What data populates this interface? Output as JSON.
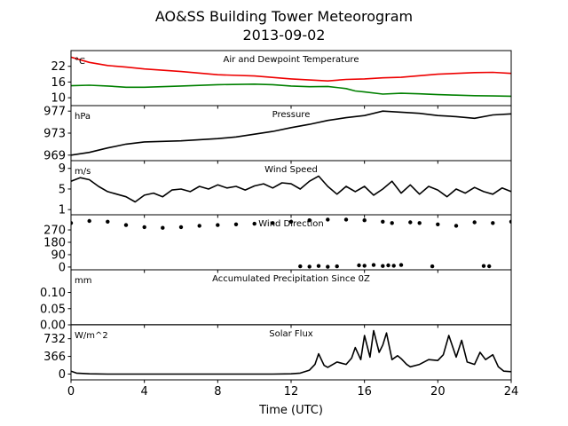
{
  "figure": {
    "title": "AO&SS Building Tower Meteorogram",
    "subtitle": "2013-09-02",
    "xlabel": "Time (UTC)"
  },
  "chart_data": [
    {
      "type": "line",
      "title": "Air and Dewpoint Temperature",
      "unit": "°C",
      "xlim": [
        0,
        24
      ],
      "ylim": [
        7,
        28
      ],
      "yticks": [
        10,
        16,
        22
      ],
      "xticks": [
        0,
        4,
        8,
        12,
        16,
        20,
        24
      ],
      "colors": {
        "air": "#ee0000",
        "dew": "#008000"
      },
      "series": [
        {
          "key": "air",
          "x": [
            0,
            0.5,
            1,
            2,
            3,
            4,
            6,
            8,
            10,
            12,
            13,
            14,
            15,
            16,
            17,
            18,
            19,
            20,
            21,
            22,
            23,
            24
          ],
          "y": [
            25.5,
            24.5,
            23.5,
            22.3,
            21.7,
            21.0,
            20.0,
            18.8,
            18.3,
            17.2,
            16.8,
            16.4,
            17.0,
            17.2,
            17.6,
            17.8,
            18.4,
            19.0,
            19.3,
            19.6,
            19.7,
            19.3
          ]
        },
        {
          "key": "dew",
          "x": [
            0,
            1,
            2,
            3,
            4,
            6,
            8,
            10,
            11,
            12,
            13,
            14,
            15,
            15.5,
            16,
            17,
            18,
            19,
            20,
            21,
            22,
            23,
            24
          ],
          "y": [
            14.6,
            14.8,
            14.5,
            14.0,
            14.0,
            14.5,
            15.0,
            15.2,
            15.0,
            14.5,
            14.2,
            14.3,
            13.5,
            12.6,
            12.2,
            11.4,
            11.7,
            11.5,
            11.2,
            11.0,
            10.8,
            10.7,
            10.6
          ]
        }
      ]
    },
    {
      "type": "line",
      "title": "Pressure",
      "unit": "hPa",
      "xlim": [
        0,
        24
      ],
      "ylim": [
        968,
        978
      ],
      "yticks": [
        969,
        973,
        977
      ],
      "xticks": [
        0,
        4,
        8,
        12,
        16,
        20,
        24
      ],
      "series": [
        {
          "key": "pressure",
          "x": [
            0,
            1,
            2,
            3,
            4,
            5,
            6,
            7,
            8,
            9,
            10,
            11,
            12,
            13,
            14,
            15,
            16,
            17,
            18,
            19,
            20,
            21,
            22,
            23,
            24
          ],
          "y": [
            969.0,
            969.5,
            970.3,
            971.0,
            971.4,
            971.5,
            971.6,
            971.8,
            972.0,
            972.3,
            972.8,
            973.3,
            974.0,
            974.6,
            975.3,
            975.8,
            976.2,
            977.0,
            976.8,
            976.6,
            976.2,
            976.0,
            975.7,
            976.3,
            976.5
          ]
        }
      ]
    },
    {
      "type": "line",
      "title": "Wind Speed",
      "unit": "m/s",
      "xlim": [
        0,
        24
      ],
      "ylim": [
        0,
        10.5
      ],
      "yticks": [
        1,
        5,
        9
      ],
      "xticks": [
        0,
        4,
        8,
        12,
        16,
        20,
        24
      ],
      "series": [
        {
          "key": "wind_speed",
          "x": [
            0,
            0.5,
            1,
            1.5,
            2,
            2.5,
            3,
            3.5,
            4,
            4.5,
            5,
            5.5,
            6,
            6.5,
            7,
            7.5,
            8,
            8.5,
            9,
            9.5,
            10,
            10.5,
            11,
            11.5,
            12,
            12.5,
            13,
            13.5,
            14,
            14.5,
            15,
            15.5,
            16,
            16.5,
            17,
            17.5,
            18,
            18.5,
            19,
            19.5,
            20,
            20.5,
            21,
            21.5,
            22,
            22.5,
            23,
            23.5,
            24
          ],
          "y": [
            6.5,
            7.2,
            6.8,
            5.5,
            4.5,
            4.0,
            3.5,
            2.5,
            3.8,
            4.2,
            3.5,
            4.8,
            5.0,
            4.5,
            5.5,
            5.0,
            5.8,
            5.2,
            5.5,
            4.8,
            5.6,
            6.0,
            5.2,
            6.2,
            6.0,
            5.0,
            6.5,
            7.5,
            5.5,
            4.0,
            5.5,
            4.5,
            5.5,
            3.8,
            5.0,
            6.5,
            4.2,
            5.8,
            4.0,
            5.5,
            4.8,
            3.5,
            5.0,
            4.2,
            5.3,
            4.5,
            4.0,
            5.2,
            4.5
          ]
        }
      ]
    },
    {
      "type": "scatter",
      "title": "Wind Direction",
      "xlim": [
        0,
        24
      ],
      "ylim": [
        -20,
        380
      ],
      "yticks": [
        0,
        90,
        180,
        270
      ],
      "xticks": [
        0,
        4,
        8,
        12,
        16,
        20,
        24
      ],
      "series": [
        {
          "key": "wind_dir_main",
          "x": [
            0,
            1,
            2,
            3,
            4,
            5,
            6,
            7,
            8,
            9,
            10,
            11,
            12,
            13,
            14,
            15,
            16,
            17,
            17.5,
            18.5,
            19,
            20,
            21,
            22,
            23,
            24
          ],
          "y": [
            320,
            335,
            330,
            305,
            290,
            285,
            290,
            300,
            305,
            310,
            315,
            320,
            330,
            340,
            345,
            345,
            340,
            330,
            320,
            325,
            320,
            310,
            300,
            325,
            320,
            330
          ]
        },
        {
          "key": "wind_dir_north",
          "x": [
            12.5,
            13,
            13.5,
            14,
            14.5,
            15.7,
            16,
            16.5,
            17,
            17.3,
            17.6,
            18,
            19.7,
            22.5,
            22.8
          ],
          "y": [
            5,
            3,
            8,
            2,
            5,
            12,
            10,
            15,
            8,
            12,
            10,
            15,
            5,
            8,
            6
          ]
        }
      ]
    },
    {
      "type": "line",
      "title": "Accumulated Precipitation Since 0Z",
      "unit": "mm",
      "xlim": [
        0,
        24
      ],
      "ylim": [
        0,
        0.17
      ],
      "yticks": [
        0.0,
        0.05,
        0.1
      ],
      "ytick_labels": [
        "0.00",
        "0.05",
        "0.10"
      ],
      "xticks": [
        0,
        4,
        8,
        12,
        16,
        20,
        24
      ],
      "series": [
        {
          "key": "precip",
          "x": [
            0,
            24
          ],
          "y": [
            0,
            0
          ]
        }
      ]
    },
    {
      "type": "line",
      "title": "Solar Flux",
      "unit": "W/m^2",
      "xlim": [
        0,
        24
      ],
      "ylim": [
        -120,
        1020
      ],
      "yticks": [
        0,
        366,
        732
      ],
      "xticks": [
        0,
        4,
        8,
        12,
        16,
        20,
        24
      ],
      "series": [
        {
          "key": "solar",
          "x": [
            0,
            0.3,
            1,
            2,
            4,
            8,
            11,
            12,
            12.5,
            13,
            13.3,
            13.5,
            13.8,
            14,
            14.5,
            15,
            15.3,
            15.5,
            15.8,
            16,
            16.3,
            16.5,
            16.8,
            17,
            17.2,
            17.5,
            17.8,
            18,
            18.3,
            18.5,
            19,
            19.5,
            20,
            20.3,
            20.6,
            21,
            21.3,
            21.6,
            22,
            22.3,
            22.6,
            23,
            23.3,
            23.6,
            24
          ],
          "y": [
            60,
            20,
            5,
            0,
            0,
            0,
            0,
            5,
            20,
            80,
            200,
            420,
            180,
            140,
            250,
            200,
            330,
            550,
            300,
            800,
            350,
            900,
            450,
            600,
            850,
            300,
            380,
            320,
            200,
            150,
            200,
            300,
            280,
            400,
            800,
            350,
            700,
            250,
            200,
            450,
            300,
            400,
            150,
            60,
            50
          ]
        }
      ]
    }
  ]
}
